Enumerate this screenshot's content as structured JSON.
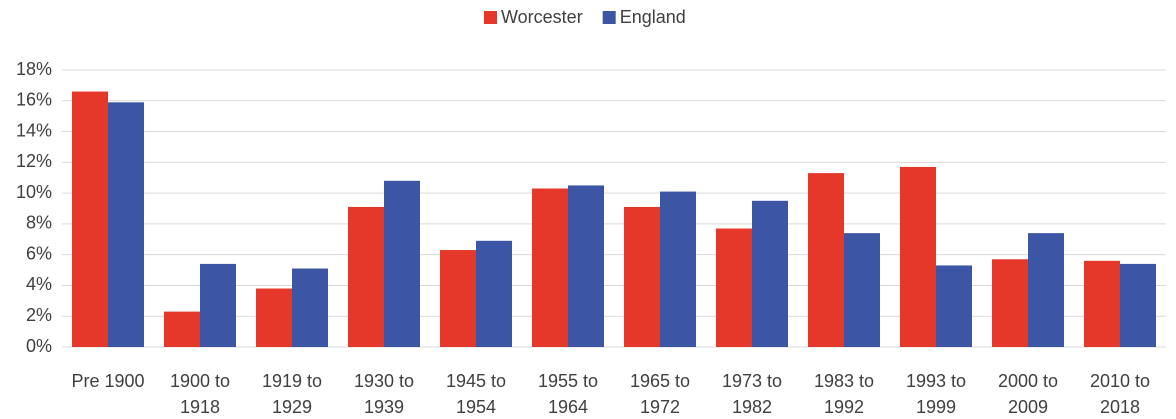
{
  "chart_data": {
    "type": "bar",
    "categories": [
      "Pre 1900",
      "1900 to 1918",
      "1919 to 1929",
      "1930 to 1939",
      "1945 to 1954",
      "1955 to 1964",
      "1965 to 1972",
      "1973 to 1982",
      "1983 to 1992",
      "1993 to 1999",
      "2000 to 2009",
      "2010 to 2018"
    ],
    "series": [
      {
        "name": "Worcester",
        "color": "#e5382a",
        "values": [
          16.6,
          2.3,
          3.8,
          9.1,
          6.3,
          10.3,
          9.1,
          7.7,
          11.3,
          11.7,
          5.7,
          5.6
        ]
      },
      {
        "name": "England",
        "color": "#3c55a4",
        "values": [
          15.9,
          5.4,
          5.1,
          10.8,
          6.9,
          10.5,
          10.1,
          9.5,
          7.4,
          5.3,
          7.4,
          5.4
        ]
      }
    ],
    "ylim": [
      0,
      18
    ],
    "yticks": [
      {
        "value": 0,
        "label": "0%"
      },
      {
        "value": 2,
        "label": "2%"
      },
      {
        "value": 4,
        "label": "4%"
      },
      {
        "value": 6,
        "label": "6%"
      },
      {
        "value": 8,
        "label": "8%"
      },
      {
        "value": 10,
        "label": "10%"
      },
      {
        "value": 12,
        "label": "12%"
      },
      {
        "value": 14,
        "label": "14%"
      },
      {
        "value": 16,
        "label": "16%"
      },
      {
        "value": 18,
        "label": "18%"
      }
    ],
    "grid": true,
    "legend": "top"
  }
}
